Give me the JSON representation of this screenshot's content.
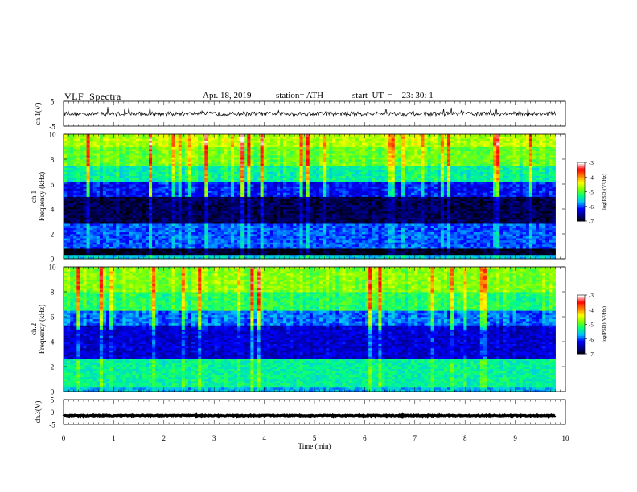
{
  "header": {
    "title": "VLF  Spectra",
    "date": "Apr. 18, 2019",
    "station": "station= ATH",
    "start": "start  UT  =    23: 30: 1"
  },
  "chart_data": [
    {
      "type": "line",
      "panel": "ch.1 voltage",
      "ylabel": "ch.1(V)",
      "ylim": [
        -5,
        5
      ],
      "y_ticks": [
        "5",
        "-5"
      ],
      "xlim": [
        0,
        9.8
      ],
      "baseline": 0,
      "noise_amplitude": 0.8,
      "spike_amplitude": 4.5
    },
    {
      "type": "heatmap",
      "panel": "ch.1 spectrogram",
      "ylabel": "ch.1\nFrequency (kHz)",
      "ylim": [
        0,
        10
      ],
      "y_ticks": [
        "0",
        "2",
        "4",
        "6",
        "8",
        "10"
      ],
      "xlim": [
        0,
        9.8
      ],
      "colorbar": {
        "label": "log(PSD)(V²/Hz)",
        "range": [
          -7,
          -3
        ],
        "ticks": [
          "-3",
          "-4",
          "-5",
          "-6",
          "-7"
        ]
      },
      "bands": [
        {
          "f": [
            0,
            0.3
          ],
          "level": -5.5
        },
        {
          "f": [
            0.3,
            0.9
          ],
          "level": -7.0
        },
        {
          "f": [
            0.9,
            2.9
          ],
          "level": -5.9
        },
        {
          "f": [
            2.9,
            5.0
          ],
          "level": -6.8
        },
        {
          "f": [
            5.0,
            6.2
          ],
          "level": -6.1
        },
        {
          "f": [
            6.2,
            7.5
          ],
          "level": -5.2
        },
        {
          "f": [
            7.5,
            9.0
          ],
          "level": -4.7
        },
        {
          "f": [
            9.0,
            10.0
          ],
          "level": -4.4
        }
      ]
    },
    {
      "type": "heatmap",
      "panel": "ch.2 spectrogram",
      "ylabel": "ch.2\nFrequency (kHz)",
      "ylim": [
        0,
        10
      ],
      "y_ticks": [
        "0",
        "2",
        "4",
        "6",
        "8",
        "10"
      ],
      "xlim": [
        0,
        9.8
      ],
      "colorbar": {
        "label": "log(PSD)(V²/Hz)",
        "range": [
          -7,
          -3
        ],
        "ticks": [
          "-3",
          "-4",
          "-5",
          "-6",
          "-7"
        ]
      },
      "bands": [
        {
          "f": [
            0,
            0.3
          ],
          "level": -5.6
        },
        {
          "f": [
            0.3,
            2.6
          ],
          "level": -5.2
        },
        {
          "f": [
            2.6,
            5.4
          ],
          "level": -6.3
        },
        {
          "f": [
            5.4,
            6.5
          ],
          "level": -5.8
        },
        {
          "f": [
            6.5,
            8.0
          ],
          "level": -5.0
        },
        {
          "f": [
            8.0,
            10.0
          ],
          "level": -4.6
        }
      ]
    },
    {
      "type": "line",
      "panel": "ch.3 voltage",
      "ylabel": "ch.3(V)",
      "ylim": [
        -5,
        5
      ],
      "y_ticks": [
        "5",
        "0",
        "-5"
      ],
      "xlim": [
        0,
        9.8
      ],
      "baseline": -1.5,
      "noise_amplitude": 0.2,
      "spike_amplitude": 0
    }
  ],
  "x_axis": {
    "label": "Time  (min)",
    "range": [
      0,
      10
    ],
    "ticks": [
      "0",
      "1",
      "2",
      "3",
      "4",
      "5",
      "6",
      "7",
      "8",
      "9",
      "10"
    ]
  },
  "colorbar": {
    "colors": [
      "#000000",
      "#00008b",
      "#0000ff",
      "#00bfff",
      "#00ff80",
      "#80ff00",
      "#ffff00",
      "#ff8000",
      "#ff0000",
      "#ffffff"
    ]
  }
}
